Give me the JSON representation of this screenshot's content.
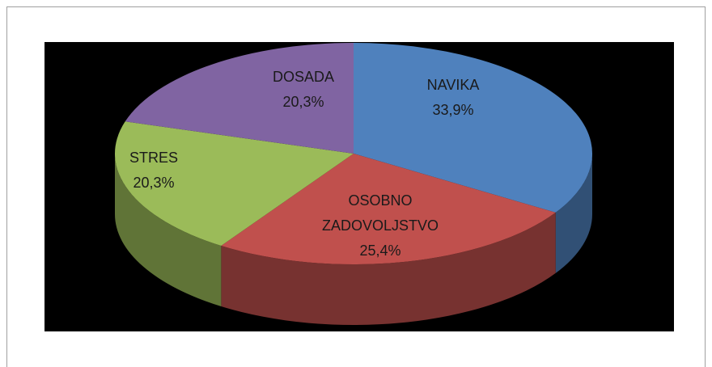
{
  "chart_data": {
    "type": "pie",
    "categories": [
      "NAVIKA",
      "OSOBNO ZADOVOLJSTVO",
      "STRES",
      "DOSADA"
    ],
    "values": [
      33.9,
      25.4,
      20.3,
      20.3
    ],
    "value_labels": [
      "33,9%",
      "25,4%",
      "20,3%",
      "20,3%"
    ],
    "colors": [
      "#4f81bd",
      "#c0504d",
      "#9bbb59",
      "#8064a2"
    ]
  }
}
